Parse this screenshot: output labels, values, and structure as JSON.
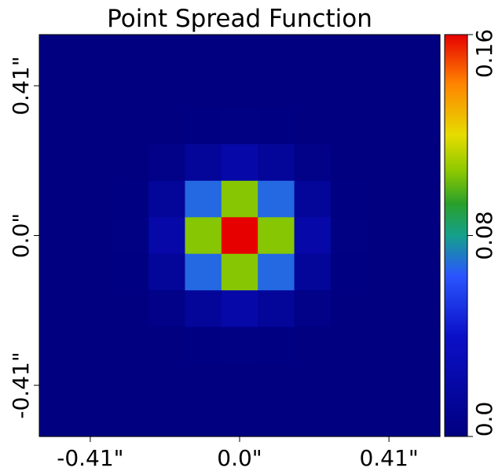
{
  "chart_data": {
    "type": "heatmap",
    "title": "Point Spread Function",
    "xlabel": "",
    "ylabel": "",
    "x_ticks": [
      "-0.41\"",
      "0.0\"",
      "0.41\""
    ],
    "x_tick_values": [
      -0.41,
      0.0,
      0.41
    ],
    "y_ticks": [
      "-0.41\"",
      "0.0\"",
      "0.41\""
    ],
    "y_tick_values": [
      -0.41,
      0.0,
      0.41
    ],
    "extent": [
      -0.55,
      0.55,
      -0.55,
      0.55
    ],
    "grid": false,
    "colorbar": {
      "ticks": [
        "0.0",
        "0.08",
        "0.16"
      ],
      "tick_values": [
        0.0,
        0.08,
        0.16
      ],
      "range": [
        0.0,
        0.16
      ],
      "colormap": "nipy_spectral-like"
    },
    "values": [
      [
        0.0,
        0.0,
        0.0,
        0.0,
        0.0,
        0.0,
        0.0,
        0.0,
        0.0,
        0.0,
        0.0
      ],
      [
        0.0,
        0.0,
        0.0,
        0.0,
        0.0,
        0.0,
        0.0,
        0.0,
        0.0,
        0.0,
        0.0
      ],
      [
        0.0,
        0.0,
        0.0,
        0.0,
        0.001,
        0.002,
        0.001,
        0.0,
        0.0,
        0.0,
        0.0
      ],
      [
        0.0,
        0.0,
        0.0,
        0.004,
        0.014,
        0.022,
        0.014,
        0.004,
        0.0,
        0.0,
        0.0
      ],
      [
        0.0,
        0.0,
        0.001,
        0.014,
        0.068,
        0.105,
        0.068,
        0.014,
        0.001,
        0.0,
        0.0
      ],
      [
        0.0,
        0.0,
        0.002,
        0.022,
        0.105,
        0.16,
        0.105,
        0.022,
        0.002,
        0.0,
        0.0
      ],
      [
        0.0,
        0.0,
        0.001,
        0.014,
        0.068,
        0.105,
        0.068,
        0.014,
        0.001,
        0.0,
        0.0
      ],
      [
        0.0,
        0.0,
        0.0,
        0.004,
        0.014,
        0.022,
        0.014,
        0.004,
        0.0,
        0.0,
        0.0
      ],
      [
        0.0,
        0.0,
        0.0,
        0.0,
        0.001,
        0.002,
        0.001,
        0.0,
        0.0,
        0.0,
        0.0
      ],
      [
        0.0,
        0.0,
        0.0,
        0.0,
        0.0,
        0.0,
        0.0,
        0.0,
        0.0,
        0.0,
        0.0
      ],
      [
        0.0,
        0.0,
        0.0,
        0.0,
        0.0,
        0.0,
        0.0,
        0.0,
        0.0,
        0.0,
        0.0
      ]
    ]
  }
}
